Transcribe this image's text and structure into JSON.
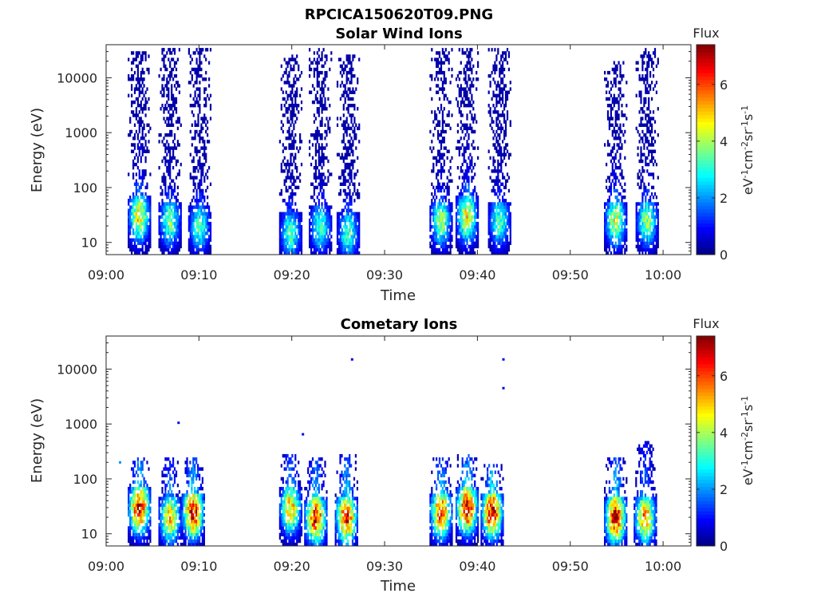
{
  "figure": {
    "title": "RPCICA150620T09.PNG"
  },
  "chart_data": [
    {
      "type": "heatmap",
      "title": "Solar Wind Ions",
      "xlabel": "Time",
      "ylabel": "Energy (eV)",
      "x_ticks": [
        "09:00",
        "09:10",
        "09:20",
        "09:30",
        "09:40",
        "09:50",
        "10:00"
      ],
      "y_ticks": [
        "10",
        "100",
        "1000",
        "10000"
      ],
      "y_scale": "log",
      "xlim": [
        "09:00",
        "10:03"
      ],
      "ylim": [
        6,
        40000
      ],
      "colorbar": {
        "title": "Flux",
        "label": "eV⁻¹cm⁻²sr⁻¹s⁻¹",
        "ticks": [
          "0",
          "2",
          "4",
          "6"
        ],
        "range": [
          0,
          7.4
        ],
        "colormap": "jet"
      },
      "bursts": [
        {
          "time": "09:03.5",
          "peak_energy_eV": 30,
          "peak_flux": 4.7,
          "max_energy_eV": 30000
        },
        {
          "time": "09:06.8",
          "peak_energy_eV": 25,
          "peak_flux": 3.6,
          "max_energy_eV": 35000
        },
        {
          "time": "09:10.0",
          "peak_energy_eV": 20,
          "peak_flux": 3.3,
          "max_energy_eV": 35000
        },
        {
          "time": "09:19.8",
          "peak_energy_eV": 15,
          "peak_flux": 3.3,
          "max_energy_eV": 25000
        },
        {
          "time": "09:23.0",
          "peak_energy_eV": 20,
          "peak_flux": 3.3,
          "max_energy_eV": 35000
        },
        {
          "time": "09:26.0",
          "peak_energy_eV": 15,
          "peak_flux": 3.3,
          "max_energy_eV": 25000
        },
        {
          "time": "09:36.0",
          "peak_energy_eV": 25,
          "peak_flux": 3.8,
          "max_energy_eV": 35000
        },
        {
          "time": "09:38.8",
          "peak_energy_eV": 30,
          "peak_flux": 4.7,
          "max_energy_eV": 35000
        },
        {
          "time": "09:42.3",
          "peak_energy_eV": 25,
          "peak_flux": 3.5,
          "max_energy_eV": 35000
        },
        {
          "time": "09:54.8",
          "peak_energy_eV": 25,
          "peak_flux": 4.4,
          "max_energy_eV": 20000
        },
        {
          "time": "09:58.2",
          "peak_energy_eV": 25,
          "peak_flux": 3.8,
          "max_energy_eV": 35000
        }
      ]
    },
    {
      "type": "heatmap",
      "title": "Cometary Ions",
      "xlabel": "Time",
      "ylabel": "Energy (eV)",
      "x_ticks": [
        "09:00",
        "09:10",
        "09:20",
        "09:30",
        "09:40",
        "09:50",
        "10:00"
      ],
      "y_ticks": [
        "10",
        "100",
        "1000",
        "10000"
      ],
      "y_scale": "log",
      "xlim": [
        "09:00",
        "10:03"
      ],
      "ylim": [
        6,
        40000
      ],
      "colorbar": {
        "title": "Flux",
        "label": "eV⁻¹cm⁻²sr⁻¹s⁻¹",
        "ticks": [
          "0",
          "2",
          "4",
          "6"
        ],
        "range": [
          0,
          7.4
        ],
        "colormap": "jet"
      },
      "bursts": [
        {
          "time": "09:03.5",
          "peak_energy_eV": 30,
          "peak_flux": 6.8,
          "max_energy_eV": 250
        },
        {
          "time": "09:06.8",
          "peak_energy_eV": 20,
          "peak_flux": 5.0,
          "max_energy_eV": 250
        },
        {
          "time": "09:09.3",
          "peak_energy_eV": 25,
          "peak_flux": 6.8,
          "max_energy_eV": 250
        },
        {
          "time": "09:19.8",
          "peak_energy_eV": 30,
          "peak_flux": 5.2,
          "max_energy_eV": 300
        },
        {
          "time": "09:22.5",
          "peak_energy_eV": 20,
          "peak_flux": 6.5,
          "max_energy_eV": 250
        },
        {
          "time": "09:25.8",
          "peak_energy_eV": 20,
          "peak_flux": 6.5,
          "max_energy_eV": 300
        },
        {
          "time": "09:36.0",
          "peak_energy_eV": 25,
          "peak_flux": 6.2,
          "max_energy_eV": 250
        },
        {
          "time": "09:38.8",
          "peak_energy_eV": 30,
          "peak_flux": 6.8,
          "max_energy_eV": 300
        },
        {
          "time": "09:41.5",
          "peak_energy_eV": 25,
          "peak_flux": 6.8,
          "max_energy_eV": 200
        },
        {
          "time": "09:54.8",
          "peak_energy_eV": 20,
          "peak_flux": 6.8,
          "max_energy_eV": 250
        },
        {
          "time": "09:58.0",
          "peak_energy_eV": 20,
          "peak_flux": 5.5,
          "max_energy_eV": 500
        }
      ],
      "isolated_points": [
        {
          "time": "09:01.5",
          "energy_eV": 200,
          "flux": 2.0
        },
        {
          "time": "09:07.8",
          "energy_eV": 1050,
          "flux": 0.8
        },
        {
          "time": "09:21.2",
          "energy_eV": 650,
          "flux": 0.8
        },
        {
          "time": "09:26.5",
          "energy_eV": 15000,
          "flux": 0.8
        },
        {
          "time": "09:42.8",
          "energy_eV": 15000,
          "flux": 0.8
        },
        {
          "time": "09:42.8",
          "energy_eV": 4500,
          "flux": 0.8
        }
      ]
    }
  ]
}
